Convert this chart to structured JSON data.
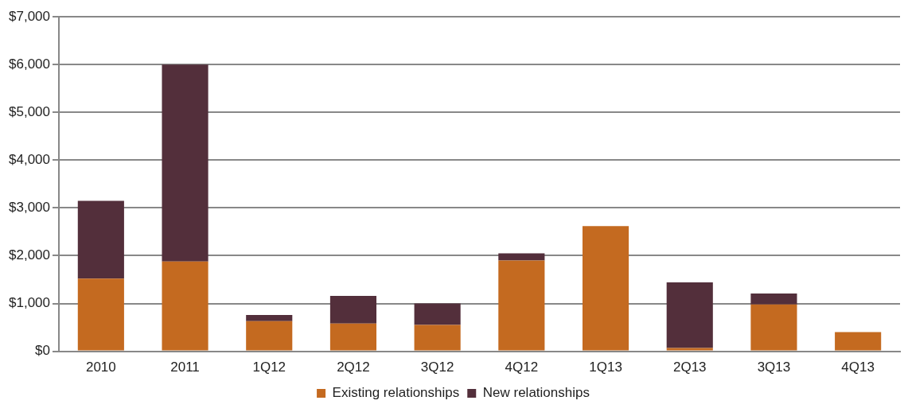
{
  "chart_data": {
    "type": "bar",
    "stacked": true,
    "categories": [
      "2010",
      "2011",
      "1Q12",
      "2Q12",
      "3Q12",
      "4Q12",
      "1Q13",
      "2Q13",
      "3Q13",
      "4Q13"
    ],
    "series": [
      {
        "name": "Existing relationships",
        "color": "#c46a20",
        "values": [
          1520,
          1880,
          630,
          580,
          550,
          1900,
          2620,
          70,
          980,
          400
        ]
      },
      {
        "name": "New relationships",
        "color": "#532f3b",
        "values": [
          1630,
          4120,
          130,
          580,
          450,
          150,
          0,
          1370,
          230,
          0
        ]
      }
    ],
    "ylim": [
      0,
      7000
    ],
    "yticks": [
      {
        "value": 0,
        "label": "$0"
      },
      {
        "value": 1000,
        "label": "$1,000"
      },
      {
        "value": 2000,
        "label": "$2,000"
      },
      {
        "value": 3000,
        "label": "$3,000"
      },
      {
        "value": 4000,
        "label": "$4,000"
      },
      {
        "value": 5000,
        "label": "$5,000"
      },
      {
        "value": 6000,
        "label": "$6,000"
      },
      {
        "value": 7000,
        "label": "$7,000"
      }
    ],
    "grid": "y",
    "legend": "bottom"
  }
}
